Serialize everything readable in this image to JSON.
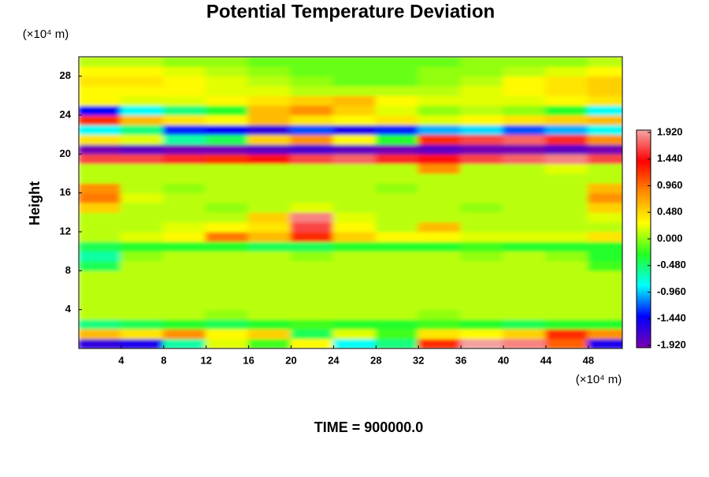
{
  "chart_data": {
    "type": "heatmap",
    "title": "Potential Temperature Deviation",
    "y_label": "Height",
    "y_unit_label": "(×10⁴ m)",
    "x_unit_label": "(×10⁴ m)",
    "footer": "TIME = 900000.0",
    "xlim": [
      0,
      51.2
    ],
    "ylim": [
      0,
      30
    ],
    "xticks": [
      4,
      8,
      12,
      16,
      20,
      24,
      28,
      32,
      36,
      40,
      44,
      48
    ],
    "yticks": [
      4,
      8,
      12,
      16,
      20,
      24,
      28
    ],
    "x": [
      2,
      6,
      10,
      14,
      18,
      22,
      26,
      30,
      34,
      38,
      42,
      46,
      50
    ],
    "y": [
      0.5,
      1.5,
      2.5,
      3.5,
      4.5,
      5.5,
      6.5,
      7.5,
      8.5,
      9.5,
      10.5,
      11.5,
      12.5,
      13.5,
      14.5,
      15.5,
      16.5,
      17.5,
      18.5,
      19.5,
      20.5,
      21.5,
      22.5,
      23.5,
      24.5,
      25.5,
      26.5,
      27.5,
      28.5,
      29.5
    ],
    "z": [
      [
        -1.6,
        -1.5,
        -0.6,
        0.2,
        -0.2,
        0.3,
        -0.8,
        -0.5,
        1.2,
        1.9,
        1.8,
        1.0,
        -1.5
      ],
      [
        0.6,
        0.4,
        0.8,
        0.3,
        0.5,
        -0.4,
        0.2,
        -0.2,
        0.4,
        0.3,
        0.5,
        1.2,
        0.8
      ],
      [
        -0.5,
        -0.4,
        -0.3,
        -0.4,
        -0.3,
        -0.2,
        -0.3,
        -0.3,
        -0.2,
        -0.3,
        -0.4,
        -0.3,
        -0.3
      ],
      [
        0.1,
        0.1,
        0.1,
        0.0,
        0.1,
        0.1,
        0.1,
        0.1,
        0.0,
        0.1,
        0.1,
        0.1,
        0.1
      ],
      [
        0.1,
        0.1,
        0.1,
        0.1,
        0.1,
        0.1,
        0.1,
        0.1,
        0.1,
        0.1,
        0.1,
        0.1,
        0.1
      ],
      [
        0.1,
        0.1,
        0.1,
        0.1,
        0.1,
        0.1,
        0.1,
        0.1,
        0.1,
        0.1,
        0.1,
        0.1,
        0.1
      ],
      [
        0.1,
        0.1,
        0.1,
        0.1,
        0.1,
        0.1,
        0.1,
        0.1,
        0.1,
        0.1,
        0.1,
        0.1,
        0.1
      ],
      [
        0.1,
        0.1,
        0.1,
        0.1,
        0.1,
        0.1,
        0.1,
        0.1,
        0.1,
        0.1,
        0.1,
        0.1,
        0.1
      ],
      [
        -0.4,
        0.1,
        0.1,
        0.1,
        0.1,
        0.1,
        0.1,
        0.1,
        0.1,
        0.1,
        0.1,
        0.1,
        -0.2
      ],
      [
        -0.6,
        0.0,
        0.1,
        0.1,
        0.1,
        0.0,
        0.1,
        0.1,
        0.1,
        0.0,
        0.1,
        0.0,
        -0.3
      ],
      [
        -0.4,
        -0.3,
        -0.3,
        -0.3,
        -0.4,
        -0.4,
        -0.3,
        -0.3,
        -0.3,
        -0.2,
        -0.3,
        -0.3,
        -0.3
      ],
      [
        0.1,
        0.2,
        0.3,
        0.9,
        0.6,
        1.2,
        0.5,
        0.3,
        0.3,
        0.2,
        0.2,
        0.2,
        0.4
      ],
      [
        0.1,
        0.1,
        0.2,
        0.3,
        0.4,
        1.6,
        0.3,
        0.1,
        0.6,
        0.1,
        0.1,
        0.1,
        0.1
      ],
      [
        0.1,
        0.1,
        0.1,
        0.1,
        0.5,
        1.8,
        0.2,
        0.1,
        0.1,
        0.1,
        0.1,
        0.1,
        0.2
      ],
      [
        0.5,
        0.1,
        0.1,
        0.0,
        0.1,
        0.2,
        0.1,
        0.1,
        0.1,
        0.0,
        0.1,
        0.1,
        0.5
      ],
      [
        0.9,
        0.2,
        0.1,
        0.1,
        0.1,
        0.1,
        0.1,
        0.1,
        0.1,
        0.1,
        0.1,
        0.1,
        0.8
      ],
      [
        0.8,
        0.1,
        0.0,
        0.1,
        0.1,
        0.1,
        0.1,
        0.0,
        0.1,
        0.1,
        0.1,
        0.1,
        0.6
      ],
      [
        0.1,
        0.1,
        0.1,
        0.1,
        0.1,
        0.1,
        0.1,
        0.1,
        0.1,
        0.1,
        0.1,
        0.1,
        0.1
      ],
      [
        0.1,
        0.1,
        0.1,
        0.1,
        0.1,
        0.1,
        0.1,
        0.1,
        0.8,
        0.1,
        0.1,
        0.2,
        0.1
      ],
      [
        1.6,
        1.6,
        1.5,
        1.2,
        1.4,
        1.6,
        1.7,
        1.5,
        1.4,
        1.6,
        1.7,
        1.8,
        1.6
      ],
      [
        -1.9,
        -1.8,
        -1.9,
        -1.9,
        -1.8,
        -1.7,
        -1.8,
        -1.9,
        -1.8,
        -1.9,
        -1.9,
        -1.8,
        -1.9
      ],
      [
        0.4,
        0.2,
        -0.6,
        -0.4,
        0.5,
        0.8,
        0.3,
        -0.3,
        1.2,
        1.6,
        1.7,
        1.5,
        0.8
      ],
      [
        -0.8,
        -0.5,
        -1.3,
        -1.4,
        -1.6,
        -1.2,
        -1.5,
        -1.3,
        -1.0,
        -0.9,
        -1.2,
        -1.0,
        -0.8
      ],
      [
        1.2,
        0.6,
        0.4,
        0.3,
        0.6,
        0.4,
        0.3,
        0.4,
        0.2,
        0.3,
        0.4,
        0.5,
        0.6
      ],
      [
        -1.4,
        -0.8,
        -0.5,
        -0.3,
        0.6,
        0.8,
        0.5,
        0.2,
        0.0,
        0.1,
        0.0,
        -0.3,
        -0.8
      ],
      [
        0.3,
        0.2,
        0.2,
        0.3,
        0.4,
        0.5,
        0.6,
        0.3,
        0.2,
        0.2,
        0.2,
        0.3,
        0.4
      ],
      [
        0.3,
        0.3,
        0.3,
        0.2,
        0.2,
        0.1,
        0.1,
        0.1,
        0.1,
        0.2,
        0.3,
        0.4,
        0.5
      ],
      [
        0.4,
        0.4,
        0.3,
        0.2,
        0.1,
        0.0,
        -0.1,
        -0.1,
        0.0,
        0.1,
        0.3,
        0.4,
        0.5
      ],
      [
        0.3,
        0.3,
        0.2,
        0.1,
        0.0,
        -0.1,
        -0.1,
        -0.1,
        0.0,
        0.0,
        0.1,
        0.2,
        0.3
      ],
      [
        0.1,
        0.1,
        0.0,
        0.0,
        -0.1,
        -0.1,
        -0.1,
        -0.1,
        -0.1,
        0.0,
        0.0,
        0.0,
        0.1
      ]
    ],
    "zlim": [
      -1.92,
      1.92
    ],
    "zticks": [
      {
        "value": 1.92,
        "label": "1.920"
      },
      {
        "value": 1.44,
        "label": "1.440"
      },
      {
        "value": 0.96,
        "label": "0.960"
      },
      {
        "value": 0.48,
        "label": "0.480"
      },
      {
        "value": 0,
        "label": "0.000"
      },
      {
        "value": -0.48,
        "label": "-0.480"
      },
      {
        "value": -0.96,
        "label": "-0.960"
      },
      {
        "value": -1.44,
        "label": "-1.440"
      },
      {
        "value": -1.92,
        "label": "-1.920"
      }
    ],
    "colormap": [
      "#7a00b0",
      "#0000ff",
      "#00ffff",
      "#22ff22",
      "#ffff00",
      "#ff8c00",
      "#ff0000",
      "#f4a6a6"
    ]
  }
}
